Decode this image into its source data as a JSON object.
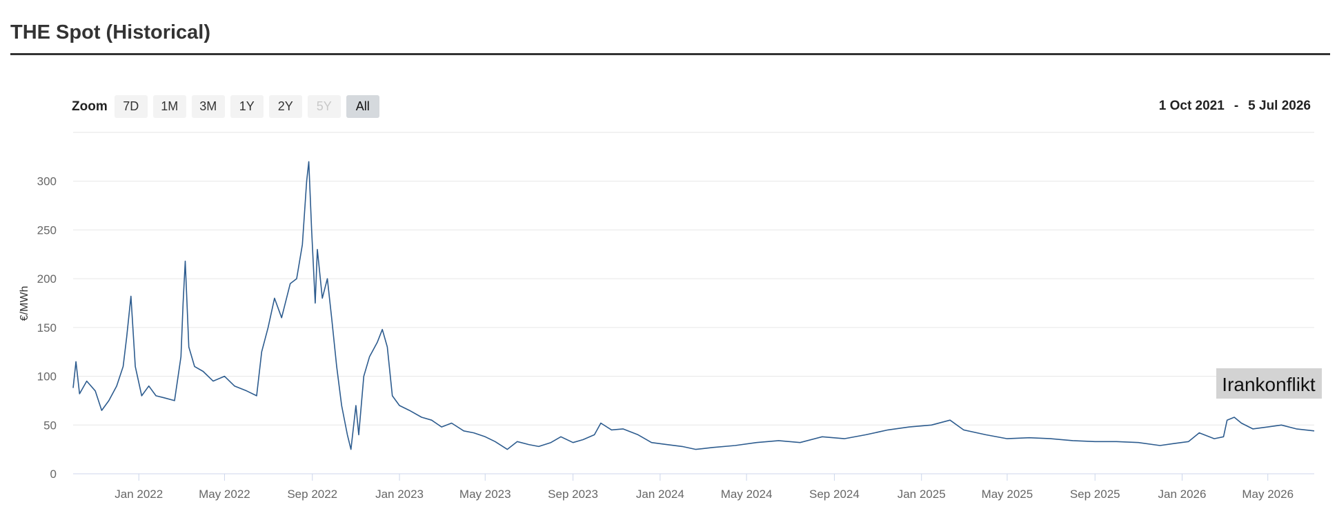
{
  "header": {
    "title": "THE Spot (Historical)"
  },
  "zoom": {
    "label": "Zoom",
    "buttons": [
      "7D",
      "1M",
      "3M",
      "1Y",
      "2Y",
      "5Y",
      "All"
    ],
    "selected_index": 6,
    "disabled_index": 5
  },
  "range": {
    "from": "1 Oct 2021",
    "separator": "-",
    "to": "5 Jul 2026"
  },
  "chart_data": {
    "type": "line",
    "y_label": "€/MWh",
    "annotation": "Irankonflikt",
    "xlim": [
      "2021-10-01",
      "2026-07-05"
    ],
    "xticks": [
      {
        "value": "2022-01-01",
        "label": "Jan 2022"
      },
      {
        "value": "2022-05-01",
        "label": "May 2022"
      },
      {
        "value": "2022-09-01",
        "label": "Sep 2022"
      },
      {
        "value": "2023-01-01",
        "label": "Jan 2023"
      },
      {
        "value": "2023-05-01",
        "label": "May 2023"
      },
      {
        "value": "2023-09-01",
        "label": "Sep 2023"
      },
      {
        "value": "2024-01-01",
        "label": "Jan 2024"
      },
      {
        "value": "2024-05-01",
        "label": "May 2024"
      },
      {
        "value": "2024-09-01",
        "label": "Sep 2024"
      },
      {
        "value": "2025-01-01",
        "label": "Jan 2025"
      },
      {
        "value": "2025-05-01",
        "label": "May 2025"
      },
      {
        "value": "2025-09-01",
        "label": "Sep 2025"
      },
      {
        "value": "2026-01-01",
        "label": "Jan 2026"
      },
      {
        "value": "2026-05-01",
        "label": "May 2026"
      }
    ],
    "ylim": [
      0,
      350
    ],
    "yticks": [
      0,
      50,
      100,
      150,
      200,
      250,
      300
    ],
    "grid": true,
    "series": [
      {
        "name": "THE Spot",
        "color": "#2c5b8e",
        "x": [
          "2021-10-01",
          "2021-10-05",
          "2021-10-10",
          "2021-10-20",
          "2021-11-01",
          "2021-11-10",
          "2021-11-20",
          "2021-12-01",
          "2021-12-10",
          "2021-12-15",
          "2021-12-21",
          "2021-12-27",
          "2022-01-05",
          "2022-01-15",
          "2022-01-25",
          "2022-02-05",
          "2022-02-20",
          "2022-03-01",
          "2022-03-04",
          "2022-03-07",
          "2022-03-12",
          "2022-03-20",
          "2022-04-01",
          "2022-04-15",
          "2022-05-01",
          "2022-05-15",
          "2022-06-01",
          "2022-06-15",
          "2022-06-22",
          "2022-07-01",
          "2022-07-10",
          "2022-07-20",
          "2022-08-01",
          "2022-08-10",
          "2022-08-18",
          "2022-08-24",
          "2022-08-27",
          "2022-08-31",
          "2022-09-05",
          "2022-09-08",
          "2022-09-15",
          "2022-09-22",
          "2022-09-28",
          "2022-10-05",
          "2022-10-12",
          "2022-10-20",
          "2022-10-25",
          "2022-11-01",
          "2022-11-05",
          "2022-11-12",
          "2022-11-20",
          "2022-12-01",
          "2022-12-08",
          "2022-12-15",
          "2022-12-22",
          "2023-01-01",
          "2023-01-15",
          "2023-02-01",
          "2023-02-15",
          "2023-03-01",
          "2023-03-15",
          "2023-04-01",
          "2023-04-15",
          "2023-05-01",
          "2023-05-15",
          "2023-06-01",
          "2023-06-15",
          "2023-07-01",
          "2023-07-15",
          "2023-08-01",
          "2023-08-15",
          "2023-09-01",
          "2023-09-15",
          "2023-10-01",
          "2023-10-10",
          "2023-10-25",
          "2023-11-10",
          "2023-12-01",
          "2023-12-20",
          "2024-01-10",
          "2024-02-01",
          "2024-02-20",
          "2024-03-15",
          "2024-04-15",
          "2024-05-15",
          "2024-06-15",
          "2024-07-15",
          "2024-08-15",
          "2024-09-15",
          "2024-10-15",
          "2024-11-15",
          "2024-12-15",
          "2025-01-15",
          "2025-02-10",
          "2025-03-01",
          "2025-04-01",
          "2025-05-01",
          "2025-06-01",
          "2025-07-01",
          "2025-08-01",
          "2025-09-01",
          "2025-10-01",
          "2025-11-01",
          "2025-12-01",
          "2025-12-20",
          "2026-01-10",
          "2026-01-25",
          "2026-02-15",
          "2026-02-28",
          "2026-03-05",
          "2026-03-15",
          "2026-03-25",
          "2026-04-10",
          "2026-05-01",
          "2026-05-20",
          "2026-06-10",
          "2026-07-05"
        ],
        "values": [
          88,
          115,
          82,
          95,
          85,
          65,
          75,
          90,
          110,
          140,
          182,
          110,
          80,
          90,
          80,
          78,
          75,
          120,
          175,
          218,
          130,
          110,
          105,
          95,
          100,
          90,
          85,
          80,
          125,
          150,
          180,
          160,
          195,
          200,
          235,
          300,
          320,
          250,
          175,
          230,
          180,
          200,
          160,
          110,
          70,
          40,
          25,
          70,
          40,
          100,
          120,
          135,
          148,
          130,
          80,
          70,
          65,
          58,
          55,
          48,
          52,
          44,
          42,
          38,
          33,
          25,
          33,
          30,
          28,
          32,
          38,
          32,
          35,
          40,
          52,
          45,
          46,
          40,
          32,
          30,
          28,
          25,
          27,
          29,
          32,
          34,
          32,
          38,
          36,
          40,
          45,
          48,
          50,
          55,
          45,
          40,
          36,
          37,
          36,
          34,
          33,
          33,
          32,
          29,
          31,
          33,
          42,
          36,
          38,
          55,
          58,
          52,
          46,
          48,
          50,
          46,
          44
        ]
      }
    ]
  }
}
